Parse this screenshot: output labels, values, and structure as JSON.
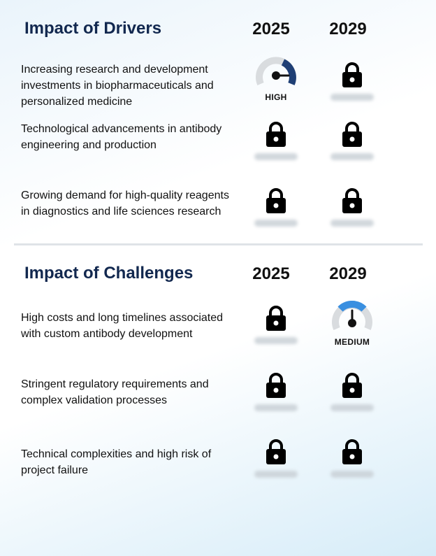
{
  "drivers": {
    "title": "Impact of Drivers",
    "year_1": "2025",
    "year_2": "2029",
    "rows": [
      {
        "text": "Increasing research and development investments in biopharmaceuticals and personalized medicine",
        "cell_2025": {
          "type": "gauge",
          "level": "HIGH",
          "icon": "gauge-high-icon",
          "color": "#1f3f75"
        },
        "cell_2029": {
          "type": "locked",
          "icon": "lock-icon"
        }
      },
      {
        "text": "Technological advancements in antibody engineering and production",
        "cell_2025": {
          "type": "locked",
          "icon": "lock-icon"
        },
        "cell_2029": {
          "type": "locked",
          "icon": "lock-icon"
        }
      },
      {
        "text": "Growing demand for high-quality reagents in diagnostics and life sciences research",
        "cell_2025": {
          "type": "locked",
          "icon": "lock-icon"
        },
        "cell_2029": {
          "type": "locked",
          "icon": "lock-icon"
        }
      }
    ]
  },
  "challenges": {
    "title": "Impact of Challenges",
    "year_1": "2025",
    "year_2": "2029",
    "rows": [
      {
        "text": "High costs and long timelines associated with custom antibody development",
        "cell_2025": {
          "type": "locked",
          "icon": "lock-icon"
        },
        "cell_2029": {
          "type": "gauge",
          "level": "MEDIUM",
          "icon": "gauge-medium-icon",
          "color": "#3a8fe0"
        }
      },
      {
        "text": "Stringent regulatory requirements and complex validation processes",
        "cell_2025": {
          "type": "locked",
          "icon": "lock-icon"
        },
        "cell_2029": {
          "type": "locked",
          "icon": "lock-icon"
        }
      },
      {
        "text": "Technical complexities and high risk of project failure",
        "cell_2025": {
          "type": "locked",
          "icon": "lock-icon"
        },
        "cell_2029": {
          "type": "locked",
          "icon": "lock-icon"
        }
      }
    ]
  },
  "colors": {
    "title": "#12284f",
    "gauge_track": "#d9dcdf",
    "lock": "#000000"
  }
}
